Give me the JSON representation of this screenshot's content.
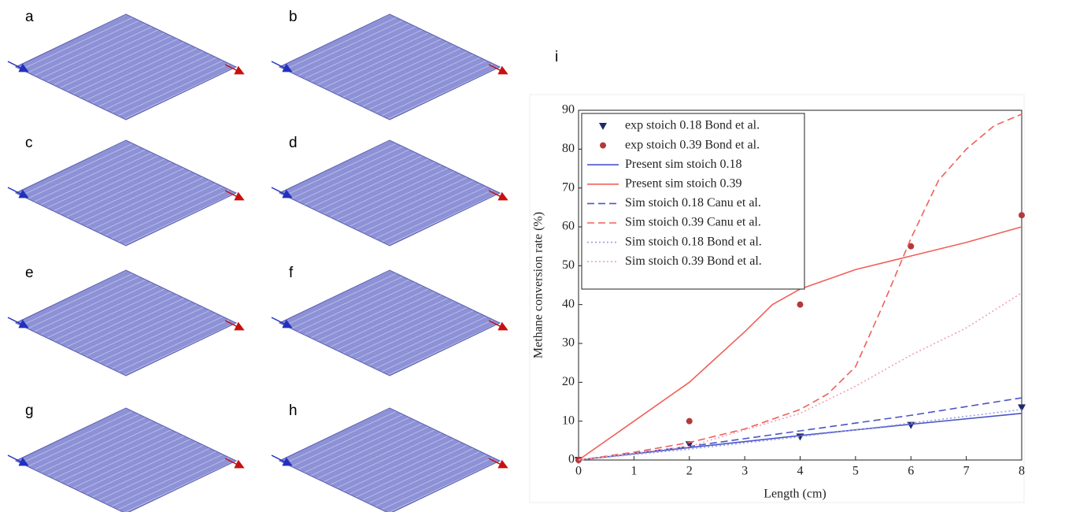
{
  "panels": [
    "a",
    "b",
    "c",
    "d",
    "e",
    "f",
    "g",
    "h",
    "i"
  ],
  "chart_data": {
    "type": "line",
    "xlabel": "Length (cm)",
    "ylabel": "Methane conversion rate (%)",
    "xlim": [
      0,
      8
    ],
    "ylim": [
      0,
      90
    ],
    "xticks": [
      0,
      1,
      2,
      3,
      4,
      5,
      6,
      7,
      8
    ],
    "yticks": [
      0,
      10,
      20,
      30,
      40,
      50,
      60,
      70,
      80,
      90
    ],
    "legend": "upper left",
    "series": [
      {
        "name": "exp stoich 0.18 Bond et al.",
        "color": "#1f2a6b",
        "style": "triangle",
        "x": [
          0,
          2,
          4,
          6,
          8
        ],
        "values": [
          0,
          4,
          6,
          9,
          13.5
        ]
      },
      {
        "name": "exp  stoich 0.39 Bond et al.",
        "color": "#b33a3a",
        "style": "circle",
        "x": [
          0,
          2,
          4,
          6,
          8
        ],
        "values": [
          0,
          10,
          40,
          55,
          63
        ]
      },
      {
        "name": "Present sim stoich 0.18",
        "color": "#4b55c8",
        "style": "solid",
        "x": [
          0,
          2,
          4,
          6,
          8
        ],
        "values": [
          0,
          3.2,
          6.3,
          9.2,
          12
        ]
      },
      {
        "name": "Present sim stoich 0.39",
        "color": "#f0605a",
        "style": "solid",
        "x": [
          0,
          1,
          2,
          3,
          3.5,
          4,
          5,
          6,
          7,
          8
        ],
        "values": [
          0,
          10,
          20,
          33,
          40,
          44,
          49,
          52.5,
          56,
          60
        ]
      },
      {
        "name": "Sim stoich 0.18 Canu et al.",
        "color": "#4b55c8",
        "style": "dashed",
        "x": [
          0,
          2,
          4,
          6,
          8
        ],
        "values": [
          0,
          3.5,
          7.5,
          11.5,
          16
        ]
      },
      {
        "name": "Sim stoich 0.39 Canu et al.",
        "color": "#f0605a",
        "style": "dashed",
        "x": [
          0,
          1,
          2,
          3,
          4,
          4.5,
          5,
          5.5,
          6,
          6.5,
          7,
          7.5,
          8
        ],
        "values": [
          0,
          2,
          4.5,
          8,
          13,
          17,
          24,
          40,
          57,
          72,
          80,
          86,
          89
        ]
      },
      {
        "name": "Sim stoich 0.18 Bond et al.",
        "color": "#9aa0e0",
        "style": "dotted",
        "x": [
          0,
          2,
          4,
          6,
          8
        ],
        "values": [
          0,
          2.8,
          6,
          9.5,
          13
        ]
      },
      {
        "name": "Sim stoich 0.39 Bond et al.",
        "color": "#f4a0b0",
        "style": "dotted",
        "x": [
          0,
          2,
          4,
          5,
          6,
          7,
          8
        ],
        "values": [
          0,
          3.5,
          12,
          19,
          27,
          34,
          43
        ]
      }
    ]
  }
}
